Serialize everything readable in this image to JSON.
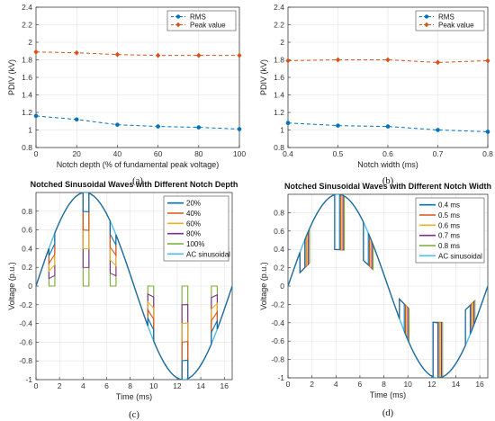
{
  "chart_data": [
    {
      "id": "a",
      "type": "line",
      "panel_label": "(a)",
      "xlabel": "Notch depth (% of fundamental peak voltage)",
      "ylabel": "PDIV (kV)",
      "xlim": [
        0,
        100
      ],
      "ylim": [
        0.8,
        2.4
      ],
      "xticks": [
        0,
        20,
        40,
        60,
        80,
        100
      ],
      "yticks": [
        0.8,
        1,
        1.2,
        1.4,
        1.6,
        1.8,
        2,
        2.2,
        2.4
      ],
      "ytick_labels": [
        "0.8",
        "1",
        "1.2",
        "1.4",
        "1.6",
        "1.8",
        "2",
        "2.2",
        "2.4"
      ],
      "x": [
        0,
        20,
        40,
        60,
        80,
        100
      ],
      "legend_position": "top-right",
      "grid": true,
      "series": [
        {
          "name": "RMS",
          "color": "#0072BD",
          "marker": "circle",
          "values": [
            1.16,
            1.12,
            1.06,
            1.04,
            1.03,
            1.01
          ]
        },
        {
          "name": "Peak value",
          "color": "#D95319",
          "marker": "diamond",
          "values": [
            1.89,
            1.88,
            1.86,
            1.85,
            1.85,
            1.85
          ]
        }
      ]
    },
    {
      "id": "b",
      "type": "line",
      "panel_label": "(b)",
      "xlabel": "Notch width (ms)",
      "ylabel": "PDIV (kV)",
      "xlim": [
        0.4,
        0.8
      ],
      "ylim": [
        0.8,
        2.4
      ],
      "xticks": [
        0.4,
        0.5,
        0.6,
        0.7,
        0.8
      ],
      "yticks": [
        0.8,
        1,
        1.2,
        1.4,
        1.6,
        1.8,
        2,
        2.2,
        2.4
      ],
      "ytick_labels": [
        "0.8",
        "1",
        "1.2",
        "1.4",
        "1.6",
        "1.8",
        "2",
        "2.2",
        "2.4"
      ],
      "x": [
        0.4,
        0.5,
        0.6,
        0.7,
        0.8
      ],
      "legend_position": "top-right",
      "grid": true,
      "series": [
        {
          "name": "RMS",
          "color": "#0072BD",
          "marker": "circle",
          "values": [
            1.08,
            1.05,
            1.04,
            1.0,
            0.98
          ]
        },
        {
          "name": "Peak value",
          "color": "#D95319",
          "marker": "diamond",
          "values": [
            1.79,
            1.8,
            1.8,
            1.77,
            1.79
          ]
        }
      ]
    },
    {
      "id": "c",
      "type": "line",
      "panel_label": "(c)",
      "title": "Notched Sinusoidal Waves with Different Notch Depth",
      "xlabel": "Time (ms)",
      "ylabel": "Voltage (p.u.)",
      "xlim": [
        0,
        16.67
      ],
      "ylim": [
        -1,
        1
      ],
      "xticks": [
        0,
        2,
        4,
        6,
        8,
        10,
        12,
        14,
        16
      ],
      "yticks": [
        -1,
        -0.8,
        -0.6,
        -0.4,
        -0.2,
        0,
        0.2,
        0.4,
        0.6,
        0.8
      ],
      "legend_position": "top-right",
      "grid": true,
      "period_ms": 16.67,
      "notch_start_times_ms": [
        1.1,
        4.0,
        6.3,
        9.5,
        12.4,
        14.9
      ],
      "notch_width_ms": 0.5,
      "series": [
        {
          "name": "20%",
          "color": "#0072BD",
          "notch_depth_percent": 20
        },
        {
          "name": "40%",
          "color": "#D95319",
          "notch_depth_percent": 40
        },
        {
          "name": "60%",
          "color": "#EDB120",
          "notch_depth_percent": 60
        },
        {
          "name": "80%",
          "color": "#7E2F8E",
          "notch_depth_percent": 80
        },
        {
          "name": "100%",
          "color": "#77AC30",
          "notch_depth_percent": 100
        },
        {
          "name": "AC sinusoidal",
          "color": "#4DBEEE",
          "notch_depth_percent": 0
        }
      ]
    },
    {
      "id": "d",
      "type": "line",
      "panel_label": "(d)",
      "title": "Notched Sinusoidal Waves with Different Notch Width",
      "xlabel": "Time (ms)",
      "ylabel": "Voltage (p.u.)",
      "xlim": [
        0,
        16.67
      ],
      "ylim": [
        -1,
        1
      ],
      "xticks": [
        0,
        2,
        4,
        6,
        8,
        10,
        12,
        14,
        16
      ],
      "yticks": [
        -1,
        -0.8,
        -0.6,
        -0.4,
        -0.2,
        0,
        0.2,
        0.4,
        0.6,
        0.8
      ],
      "legend_position": "top-right",
      "grid": true,
      "period_ms": 16.67,
      "notch_start_times_ms": [
        1.0,
        3.9,
        6.3,
        9.3,
        12.1,
        14.8
      ],
      "notch_depth_percent": 60,
      "series": [
        {
          "name": "0.4 ms",
          "color": "#0072BD",
          "notch_width_ms": 0.4
        },
        {
          "name": "0.5 ms",
          "color": "#D95319",
          "notch_width_ms": 0.5
        },
        {
          "name": "0.6 ms",
          "color": "#EDB120",
          "notch_width_ms": 0.6
        },
        {
          "name": "0.7 ms",
          "color": "#7E2F8E",
          "notch_width_ms": 0.7
        },
        {
          "name": "0.8 ms",
          "color": "#77AC30",
          "notch_width_ms": 0.8
        },
        {
          "name": "AC sinusoidal",
          "color": "#4DBEEE",
          "notch_width_ms": 0
        }
      ]
    }
  ]
}
